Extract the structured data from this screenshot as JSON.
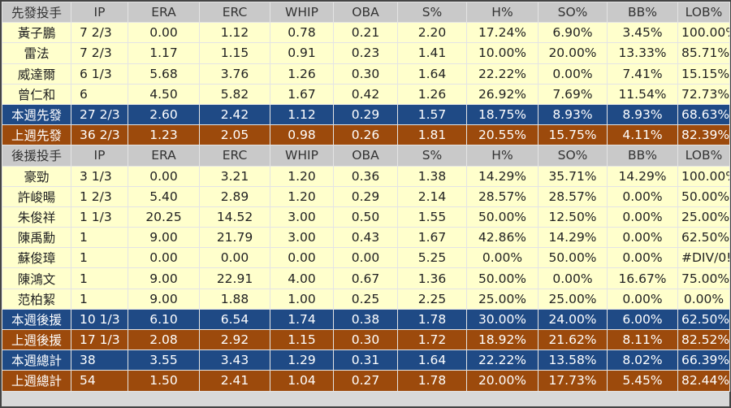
{
  "columns": [
    "IP",
    "ERA",
    "ERC",
    "WHIP",
    "OBA",
    "S%",
    "H%",
    "SO%",
    "BB%",
    "LOB%"
  ],
  "sections": [
    {
      "header": "先發投手",
      "rows": [
        [
          "黃子鵬",
          "7 2/3",
          "0.00",
          "1.12",
          "0.78",
          "0.21",
          "2.20",
          "17.24%",
          "6.90%",
          "3.45%",
          "100.00%"
        ],
        [
          "雷法",
          "7 2/3",
          "1.17",
          "1.15",
          "0.91",
          "0.23",
          "1.41",
          "10.00%",
          "20.00%",
          "13.33%",
          "85.71%"
        ],
        [
          "威達爾",
          "6 1/3",
          "5.68",
          "3.76",
          "1.26",
          "0.30",
          "1.64",
          "22.22%",
          "0.00%",
          "7.41%",
          "15.15%"
        ],
        [
          "曾仁和",
          "6",
          "4.50",
          "5.82",
          "1.67",
          "0.42",
          "1.26",
          "26.92%",
          "7.69%",
          "11.54%",
          "72.73%"
        ]
      ],
      "totals": [
        {
          "style": "blue",
          "cells": [
            "本週先發",
            "27 2/3",
            "2.60",
            "2.42",
            "1.12",
            "0.29",
            "1.57",
            "18.75%",
            "8.93%",
            "8.93%",
            "68.63%"
          ]
        },
        {
          "style": "brown",
          "cells": [
            "上週先發",
            "36 2/3",
            "1.23",
            "2.05",
            "0.98",
            "0.26",
            "1.81",
            "20.55%",
            "15.75%",
            "4.11%",
            "82.39%"
          ]
        }
      ]
    },
    {
      "header": "後援投手",
      "rows": [
        [
          "豪勁",
          "3 1/3",
          "0.00",
          "3.21",
          "1.20",
          "0.36",
          "1.38",
          "14.29%",
          "35.71%",
          "14.29%",
          "100.00%"
        ],
        [
          "許峻暘",
          "1 2/3",
          "5.40",
          "2.89",
          "1.20",
          "0.29",
          "2.14",
          "28.57%",
          "28.57%",
          "0.00%",
          "50.00%"
        ],
        [
          "朱俊祥",
          "1 1/3",
          "20.25",
          "14.52",
          "3.00",
          "0.50",
          "1.55",
          "50.00%",
          "12.50%",
          "0.00%",
          "25.00%"
        ],
        [
          "陳禹勳",
          "1",
          "9.00",
          "21.79",
          "3.00",
          "0.43",
          "1.67",
          "42.86%",
          "14.29%",
          "0.00%",
          "62.50%"
        ],
        [
          "蘇俊璋",
          "1",
          "0.00",
          "0.00",
          "0.00",
          "0.00",
          "5.25",
          "0.00%",
          "50.00%",
          "0.00%",
          "#DIV/0!"
        ],
        [
          "陳鴻文",
          "1",
          "9.00",
          "22.91",
          "4.00",
          "0.67",
          "1.36",
          "50.00%",
          "0.00%",
          "16.67%",
          "75.00%"
        ],
        [
          "范柏絜",
          "1",
          "9.00",
          "1.88",
          "1.00",
          "0.25",
          "2.25",
          "25.00%",
          "25.00%",
          "0.00%",
          "0.00%"
        ]
      ],
      "totals": [
        {
          "style": "blue",
          "cells": [
            "本週後援",
            "10 1/3",
            "6.10",
            "6.54",
            "1.74",
            "0.38",
            "1.78",
            "30.00%",
            "24.00%",
            "6.00%",
            "62.50%"
          ]
        },
        {
          "style": "brown",
          "cells": [
            "上週後援",
            "17 1/3",
            "2.08",
            "2.92",
            "1.15",
            "0.30",
            "1.72",
            "18.92%",
            "21.62%",
            "8.11%",
            "82.52%"
          ]
        },
        {
          "style": "blue",
          "cells": [
            "本週總計",
            "38",
            "3.55",
            "3.43",
            "1.29",
            "0.31",
            "1.64",
            "22.22%",
            "13.58%",
            "8.02%",
            "66.39%"
          ]
        },
        {
          "style": "brown",
          "cells": [
            "上週總計",
            "54",
            "1.50",
            "2.41",
            "1.04",
            "0.27",
            "1.78",
            "20.00%",
            "17.73%",
            "5.45%",
            "82.44%"
          ]
        }
      ]
    }
  ],
  "colors": {
    "header": "#c9c9c9",
    "body": "#ffffcc",
    "blue": "#1f4a85",
    "brown": "#9c4a0c"
  }
}
